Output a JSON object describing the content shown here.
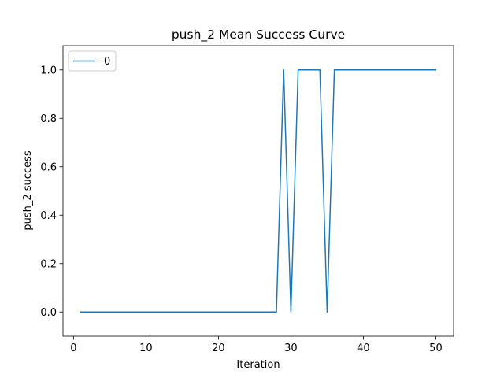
{
  "chart_data": {
    "type": "line",
    "title": "push_2 Mean Success Curve",
    "xlabel": "Iteration",
    "ylabel": "push_2 success",
    "xlim": [
      -1.45,
      52.45
    ],
    "ylim": [
      -0.1,
      1.1
    ],
    "xticks": [
      0,
      10,
      20,
      30,
      40,
      50
    ],
    "yticks": [
      0.0,
      0.2,
      0.4,
      0.6,
      0.8,
      1.0
    ],
    "xtick_labels": [
      "0",
      "10",
      "20",
      "30",
      "40",
      "50"
    ],
    "ytick_labels": [
      "0.0",
      "0.2",
      "0.4",
      "0.6",
      "0.8",
      "1.0"
    ],
    "grid": false,
    "legend_position": "upper-left",
    "series": [
      {
        "name": "0",
        "color": "#1f77b4",
        "x": [
          1,
          2,
          3,
          4,
          5,
          6,
          7,
          8,
          9,
          10,
          11,
          12,
          13,
          14,
          15,
          16,
          17,
          18,
          19,
          20,
          21,
          22,
          23,
          24,
          25,
          26,
          27,
          28,
          29,
          30,
          31,
          32,
          33,
          34,
          35,
          36,
          37,
          38,
          39,
          40,
          41,
          42,
          43,
          44,
          45,
          46,
          47,
          48,
          49,
          50
        ],
        "y": [
          0,
          0,
          0,
          0,
          0,
          0,
          0,
          0,
          0,
          0,
          0,
          0,
          0,
          0,
          0,
          0,
          0,
          0,
          0,
          0,
          0,
          0,
          0,
          0,
          0,
          0,
          0,
          0,
          1,
          0,
          1,
          1,
          1,
          1,
          0,
          1,
          1,
          1,
          1,
          1,
          1,
          1,
          1,
          1,
          1,
          1,
          1,
          1,
          1,
          1
        ]
      }
    ]
  }
}
